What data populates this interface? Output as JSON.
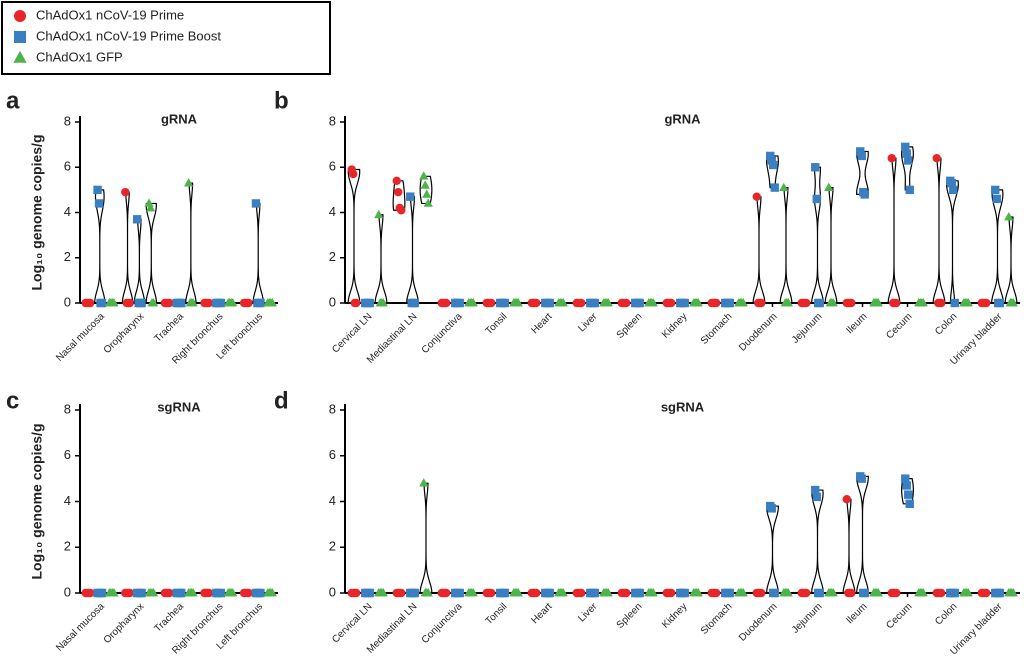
{
  "chart_data": [
    {
      "type": "violin",
      "panel": "a",
      "title": "gRNA",
      "ylabel": "Log₁₀ genome copies/g",
      "categories": [
        "Nasal mucosa",
        "Oropharynx",
        "Trachea",
        "Right bronchus",
        "Left bronchus"
      ],
      "ylim": [
        0,
        8
      ],
      "yticks": [
        0,
        2,
        4,
        6,
        8
      ],
      "series": [
        {
          "name": "ChAdOx1 nCoV-19 Prime",
          "color": "#e8262a",
          "marker": "circle",
          "values": [
            [
              0,
              0,
              0,
              0
            ],
            [
              4.9,
              0,
              0,
              0
            ],
            [
              0,
              0,
              0,
              0
            ],
            [
              0,
              0,
              0,
              0
            ],
            [
              0,
              0,
              0,
              0
            ]
          ]
        },
        {
          "name": "ChAdOx1 nCoV-19 Prime Boost",
          "color": "#3a7fc1",
          "marker": "square",
          "values": [
            [
              5.0,
              4.4,
              0,
              0
            ],
            [
              3.7,
              0,
              0,
              0
            ],
            [
              0,
              0,
              0,
              0
            ],
            [
              0,
              0,
              0,
              0
            ],
            [
              4.4,
              0,
              0,
              0
            ]
          ]
        },
        {
          "name": "ChAdOx1 GFP",
          "color": "#4cb44a",
          "marker": "triangle",
          "values": [
            [
              0,
              0,
              0,
              0
            ],
            [
              4.4,
              4.2,
              0,
              0
            ],
            [
              5.3,
              0,
              0,
              0
            ],
            [
              0,
              0,
              0,
              0
            ],
            [
              0,
              0,
              0,
              0
            ]
          ]
        }
      ]
    },
    {
      "type": "violin",
      "panel": "b",
      "title": "gRNA",
      "categories": [
        "Cervical LN",
        "Mediastinal LN",
        "Conjunctiva",
        "Tonsil",
        "Heart",
        "Liver",
        "Spleen",
        "Kidney",
        "Stomach",
        "Duodenum",
        "Jejunum",
        "Ileum",
        "Cecum",
        "Colon",
        "Urinary bladder"
      ],
      "ylim": [
        0,
        8
      ],
      "yticks": [
        0,
        2,
        4,
        6,
        8
      ],
      "series": [
        {
          "values": [
            [
              5.9,
              5.7,
              0,
              0
            ],
            [
              5.4,
              4.9,
              4.2,
              4.1
            ],
            [
              0,
              0,
              0,
              0
            ],
            [
              0,
              0,
              0,
              0
            ],
            [
              0,
              0,
              0,
              0
            ],
            [
              0,
              0,
              0,
              0
            ],
            [
              0,
              0,
              0,
              0
            ],
            [
              0,
              0,
              0,
              0
            ],
            [
              0,
              0,
              0,
              0
            ],
            [
              4.7,
              0,
              0,
              0
            ],
            [
              0,
              0,
              0,
              0
            ],
            [
              0,
              0,
              0,
              0
            ],
            [
              6.4,
              0,
              0,
              0
            ],
            [
              6.4,
              0,
              0,
              0
            ],
            [
              0,
              0,
              0,
              0
            ]
          ]
        },
        {
          "values": [
            [
              0,
              0,
              0,
              0
            ],
            [
              4.7,
              0,
              0,
              0
            ],
            [
              0,
              0,
              0,
              0
            ],
            [
              0,
              0,
              0,
              0
            ],
            [
              0,
              0,
              0,
              0
            ],
            [
              0,
              0,
              0,
              0
            ],
            [
              0,
              0,
              0,
              0
            ],
            [
              0,
              0,
              0,
              0
            ],
            [
              0,
              0,
              0,
              0
            ],
            [
              6.5,
              6.3,
              6.1,
              5.1
            ],
            [
              6.0,
              4.6,
              0,
              0
            ],
            [
              6.7,
              6.5,
              4.9,
              4.8
            ],
            [
              6.9,
              6.6,
              6.3,
              5.0
            ],
            [
              5.4,
              5.3,
              5.0,
              0
            ],
            [
              5.0,
              4.6,
              0,
              0
            ]
          ]
        },
        {
          "values": [
            [
              3.9,
              0,
              0,
              0
            ],
            [
              5.6,
              5.2,
              4.8,
              4.4
            ],
            [
              0,
              0,
              0,
              0
            ],
            [
              0,
              0,
              0,
              0
            ],
            [
              0,
              0,
              0,
              0
            ],
            [
              0,
              0,
              0,
              0
            ],
            [
              0,
              0,
              0,
              0
            ],
            [
              0,
              0,
              0,
              0
            ],
            [
              0,
              0,
              0,
              0
            ],
            [
              5.1,
              0,
              0,
              0
            ],
            [
              5.1,
              0,
              0,
              0
            ],
            [
              0,
              0,
              0,
              0
            ],
            [
              0,
              0,
              0,
              0
            ],
            [
              0,
              0,
              0,
              0
            ],
            [
              3.8,
              0,
              0,
              0
            ]
          ]
        }
      ]
    },
    {
      "type": "violin",
      "panel": "c",
      "title": "sgRNA",
      "ylabel": "Log₁₀ genome copies/g",
      "categories": [
        "Nasal mucosa",
        "Oropharynx",
        "Trachea",
        "Right bronchus",
        "Left bronchus"
      ],
      "ylim": [
        0,
        8
      ],
      "yticks": [
        0,
        2,
        4,
        6,
        8
      ],
      "series": [
        {
          "values": [
            [
              0,
              0,
              0,
              0
            ],
            [
              0,
              0,
              0,
              0
            ],
            [
              0,
              0,
              0,
              0
            ],
            [
              0,
              0,
              0,
              0
            ],
            [
              0,
              0,
              0,
              0
            ]
          ]
        },
        {
          "values": [
            [
              0,
              0,
              0,
              0
            ],
            [
              0,
              0,
              0,
              0
            ],
            [
              0,
              0,
              0,
              0
            ],
            [
              0,
              0,
              0,
              0
            ],
            [
              0,
              0,
              0,
              0
            ]
          ]
        },
        {
          "values": [
            [
              0,
              0,
              0,
              0
            ],
            [
              0,
              0,
              0,
              0
            ],
            [
              0,
              0,
              0,
              0
            ],
            [
              0,
              0,
              0,
              0
            ],
            [
              0,
              0,
              0,
              0
            ]
          ]
        }
      ]
    },
    {
      "type": "violin",
      "panel": "d",
      "title": "sgRNA",
      "categories": [
        "Cervical LN",
        "Mediastinal LN",
        "Conjunctiva",
        "Tonsil",
        "Heart",
        "Liver",
        "Spleen",
        "Kidney",
        "Stomach",
        "Duodenum",
        "Jejunum",
        "Ileum",
        "Cecum",
        "Colon",
        "Urinary bladder"
      ],
      "ylim": [
        0,
        8
      ],
      "yticks": [
        0,
        2,
        4,
        6,
        8
      ],
      "series": [
        {
          "values": [
            [
              0,
              0,
              0,
              0
            ],
            [
              0,
              0,
              0,
              0
            ],
            [
              0,
              0,
              0,
              0
            ],
            [
              0,
              0,
              0,
              0
            ],
            [
              0,
              0,
              0,
              0
            ],
            [
              0,
              0,
              0,
              0
            ],
            [
              0,
              0,
              0,
              0
            ],
            [
              0,
              0,
              0,
              0
            ],
            [
              0,
              0,
              0,
              0
            ],
            [
              0,
              0,
              0,
              0
            ],
            [
              0,
              0,
              0,
              0
            ],
            [
              4.1,
              0,
              0,
              0
            ],
            [
              0,
              0,
              0,
              0
            ],
            [
              0,
              0,
              0,
              0
            ],
            [
              0,
              0,
              0,
              0
            ]
          ]
        },
        {
          "values": [
            [
              0,
              0,
              0,
              0
            ],
            [
              0,
              0,
              0,
              0
            ],
            [
              0,
              0,
              0,
              0
            ],
            [
              0,
              0,
              0,
              0
            ],
            [
              0,
              0,
              0,
              0
            ],
            [
              0,
              0,
              0,
              0
            ],
            [
              0,
              0,
              0,
              0
            ],
            [
              0,
              0,
              0,
              0
            ],
            [
              0,
              0,
              0,
              0
            ],
            [
              3.8,
              3.7,
              0,
              0
            ],
            [
              4.5,
              4.2,
              0,
              0
            ],
            [
              5.1,
              5.0,
              0,
              0
            ],
            [
              5.0,
              4.7,
              4.3,
              3.9
            ],
            [
              0,
              0,
              0,
              0
            ],
            [
              0,
              0,
              0,
              0
            ]
          ]
        },
        {
          "values": [
            [
              0,
              0,
              0,
              0
            ],
            [
              4.8,
              0,
              0,
              0
            ],
            [
              0,
              0,
              0,
              0
            ],
            [
              0,
              0,
              0,
              0
            ],
            [
              0,
              0,
              0,
              0
            ],
            [
              0,
              0,
              0,
              0
            ],
            [
              0,
              0,
              0,
              0
            ],
            [
              0,
              0,
              0,
              0
            ],
            [
              0,
              0,
              0,
              0
            ],
            [
              0,
              0,
              0,
              0
            ],
            [
              0,
              0,
              0,
              0
            ],
            [
              0,
              0,
              0,
              0
            ],
            [
              0,
              0,
              0,
              0
            ],
            [
              0,
              0,
              0,
              0
            ],
            [
              0,
              0,
              0,
              0
            ]
          ]
        }
      ]
    }
  ]
}
